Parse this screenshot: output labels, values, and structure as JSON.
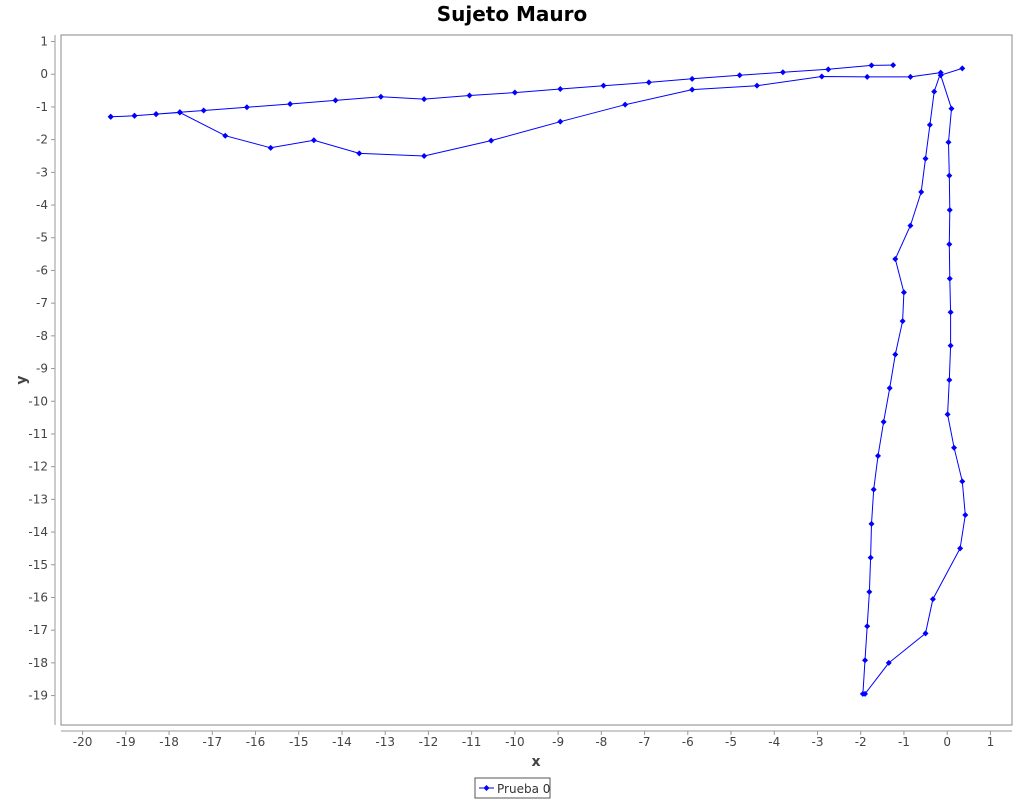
{
  "chart_data": {
    "type": "line",
    "title": "Sujeto Mauro",
    "xlabel": "x",
    "ylabel": "y",
    "xlim": [
      -20.5,
      1.5
    ],
    "ylim": [
      -19.9,
      1.2
    ],
    "xticks": [
      -20,
      -19,
      -18,
      -17,
      -16,
      -15,
      -14,
      -13,
      -12,
      -11,
      -10,
      -9,
      -8,
      -7,
      -6,
      -5,
      -4,
      -3,
      -2,
      -1,
      0,
      1
    ],
    "yticks": [
      1,
      0,
      -1,
      -2,
      -3,
      -4,
      -5,
      -6,
      -7,
      -8,
      -9,
      -10,
      -11,
      -12,
      -13,
      -14,
      -15,
      -16,
      -17,
      -18,
      -19
    ],
    "grid": false,
    "legend_position": "bottom-center",
    "series": [
      {
        "name": "Prueba 0",
        "color": "#0000ff",
        "x": [
          0.35,
          -0.15,
          0.1,
          0.03,
          0.05,
          0.06,
          0.05,
          0.06,
          0.08,
          0.08,
          0.05,
          0.01,
          0.16,
          0.35,
          0.42,
          0.3,
          -0.33,
          -0.5,
          -1.35,
          -1.9,
          -1.95,
          -1.9,
          -1.85,
          -1.8,
          -1.77,
          -1.75,
          -1.7,
          -1.6,
          -1.47,
          -1.33,
          -1.2,
          -1.03,
          -1.0,
          -1.2,
          -0.85,
          -0.6,
          -0.5,
          -0.4,
          -0.3,
          -0.15,
          -0.85,
          -1.85,
          -2.9,
          -4.4,
          -5.9,
          -7.45,
          -8.95,
          -10.55,
          -12.1,
          -13.6,
          -14.65,
          -15.65,
          -16.7,
          -17.75,
          -18.3,
          -18.8,
          -19.35,
          -19.35,
          -18.8,
          -18.3,
          -17.75,
          -17.2,
          -16.2,
          -15.2,
          -14.15,
          -13.1,
          -12.1,
          -11.05,
          -10.0,
          -8.95,
          -7.95,
          -6.9,
          -5.9,
          -4.8,
          -3.8,
          -2.75,
          -1.75,
          -1.25
        ],
        "y": [
          0.18,
          -0.03,
          -1.05,
          -2.08,
          -3.1,
          -4.15,
          -5.2,
          -6.25,
          -7.28,
          -8.3,
          -9.35,
          -10.4,
          -11.42,
          -12.45,
          -13.48,
          -14.5,
          -16.05,
          -17.1,
          -18.0,
          -18.95,
          -18.95,
          -17.92,
          -16.88,
          -15.83,
          -14.78,
          -13.75,
          -12.7,
          -11.67,
          -10.63,
          -9.6,
          -8.57,
          -7.55,
          -6.67,
          -5.65,
          -4.63,
          -3.6,
          -2.58,
          -1.55,
          -0.53,
          0.05,
          -0.08,
          -0.08,
          -0.07,
          -0.35,
          -0.47,
          -0.93,
          -1.45,
          -2.03,
          -2.5,
          -2.42,
          -2.02,
          -2.25,
          -1.88,
          -1.17,
          -1.22,
          -1.27,
          -1.3,
          -1.3,
          -1.27,
          -1.22,
          -1.16,
          -1.11,
          -1.01,
          -0.91,
          -0.8,
          -0.69,
          -0.76,
          -0.65,
          -0.56,
          -0.45,
          -0.35,
          -0.25,
          -0.14,
          -0.03,
          0.06,
          0.15,
          0.27,
          0.28
        ]
      }
    ]
  }
}
